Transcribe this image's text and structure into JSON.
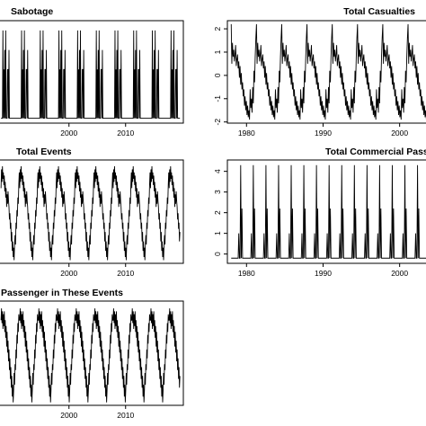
{
  "chart_data": [
    {
      "id": "sabotage",
      "type": "line",
      "title": "Sabotage",
      "xlabel": "",
      "ylabel": "",
      "x_ticks": [
        2000,
        2010
      ],
      "y_ticks": [],
      "xlim": [
        1987.5,
        2020.2
      ],
      "ylim": [
        0,
        1.05
      ],
      "grid": false,
      "start_year": 1988,
      "period_years": 3.3,
      "pattern": [
        0.05,
        0.05,
        0.05,
        0.05,
        0.95,
        0.05,
        0.55,
        0.05,
        0.75,
        0.05,
        0.95,
        0.05,
        0.05,
        0.05,
        0.55,
        0.55,
        0.05,
        0.75,
        0.05,
        0.05,
        0.05,
        0.05,
        0.05,
        0.05,
        0.05,
        0.05,
        0.05,
        0.05,
        0.05,
        0.05,
        0.05,
        0.05,
        0.05,
        0.05,
        0.05,
        0.05,
        0.05,
        0.05,
        0.05,
        0.05
      ]
    },
    {
      "id": "total-casualties",
      "type": "line",
      "title": "Total Casualties",
      "xlabel": "",
      "ylabel": "",
      "x_ticks": [
        1980,
        1990,
        2000
      ],
      "y_ticks": [
        -2,
        -1,
        0,
        1,
        2
      ],
      "xlim": [
        1977.5,
        2004.5
      ],
      "ylim": [
        -2.05,
        2.35
      ],
      "grid": false,
      "start_year": 1978,
      "period_years": 3.3,
      "pattern": [
        2.2,
        0.5,
        1.4,
        0.8,
        1.1,
        0.6,
        0.9,
        1.3,
        0.4,
        0.7,
        0.9,
        0.3,
        0.6,
        -0.1,
        0.4,
        -0.4,
        0.1,
        -0.6,
        -0.3,
        -0.9,
        -0.6,
        -1.3,
        -0.9,
        -1.5,
        -1.1,
        -1.7,
        -1.3,
        -1.8,
        -1.5,
        -1.9,
        -0.6,
        -1.4,
        -1.0,
        -1.6,
        -0.5,
        -1.2,
        0.2,
        -0.3,
        0.8,
        1.6
      ]
    },
    {
      "id": "total-events",
      "type": "line",
      "title": "Total Events",
      "xlabel": "",
      "ylabel": "",
      "x_ticks": [
        2000,
        2010
      ],
      "y_ticks": [],
      "xlim": [
        1987.5,
        2020.2
      ],
      "ylim": [
        -2.1,
        1.2
      ],
      "grid": false,
      "start_year": 1988,
      "period_years": 3.3,
      "pattern": [
        0.3,
        0.9,
        0.5,
        1.0,
        0.6,
        0.8,
        0.4,
        0.7,
        0.2,
        0.5,
        0.0,
        0.3,
        -0.3,
        0.1,
        -0.2,
        0.2,
        -0.1,
        -0.3,
        -0.7,
        -0.5,
        -1.0,
        -0.8,
        -1.4,
        -1.1,
        -1.7,
        -1.4,
        -1.9,
        -1.6,
        -2.0,
        -1.5,
        -1.2,
        -1.5,
        -0.8,
        -1.0,
        -0.4,
        -0.6,
        0.0,
        -0.2,
        0.4,
        0.8
      ]
    },
    {
      "id": "total-commercial-passengers",
      "type": "line",
      "title": "Total Commercial Passen",
      "xlabel": "",
      "ylabel": "",
      "x_ticks": [
        1980,
        1990,
        2000
      ],
      "y_ticks": [
        0,
        1,
        2,
        3,
        4
      ],
      "xlim": [
        1977.5,
        2004.5
      ],
      "ylim": [
        -0.45,
        4.55
      ],
      "grid": false,
      "start_year": 1978,
      "period_years": 1.65,
      "pattern": [
        -0.2,
        -0.2,
        -0.2,
        -0.2,
        -0.2,
        -0.2,
        -0.2,
        -0.2,
        -0.2,
        -0.2,
        -0.2,
        -0.2,
        1.0,
        -0.2,
        -0.2,
        4.3,
        -0.2,
        2.2,
        -0.2,
        -0.2
      ]
    },
    {
      "id": "passenger-in-these-events",
      "type": "line",
      "title": "Passenger in These Events",
      "xlabel": "",
      "ylabel": "",
      "x_ticks": [
        2000,
        2010
      ],
      "y_ticks": [],
      "xlim": [
        1987.5,
        2020.2
      ],
      "ylim": [
        -2.3,
        1.25
      ],
      "grid": false,
      "start_year": 1988,
      "period_years": 3.3,
      "pattern": [
        0.6,
        1.0,
        0.5,
        0.9,
        0.3,
        0.8,
        0.4,
        0.9,
        0.2,
        0.6,
        0.0,
        0.4,
        -0.3,
        0.2,
        -0.5,
        -0.1,
        -0.8,
        -0.4,
        -1.1,
        -0.7,
        -1.4,
        -1.0,
        -1.7,
        -1.3,
        -2.0,
        -1.6,
        -2.2,
        -1.8,
        -1.2,
        -1.6,
        -0.9,
        -1.1,
        -0.4,
        -0.7,
        0.1,
        -0.2,
        0.5,
        0.2,
        0.8,
        0.6
      ]
    }
  ]
}
